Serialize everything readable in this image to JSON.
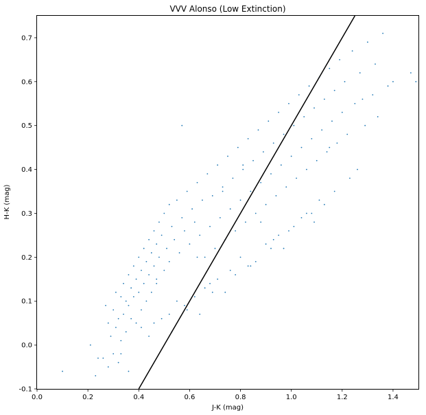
{
  "chart_data": {
    "type": "scatter",
    "title": "VVV Alonso (Low Extinction)",
    "xlabel": "J-K (mag)",
    "ylabel": "H-K (mag)",
    "xlim": [
      0.0,
      1.5
    ],
    "ylim": [
      -0.1,
      0.75
    ],
    "xticks": [
      "0.0",
      "0.2",
      "0.4",
      "0.6",
      "0.8",
      "1.0",
      "1.2",
      "1.4"
    ],
    "yticks": [
      "-0.1",
      "0.0",
      "0.1",
      "0.2",
      "0.3",
      "0.4",
      "0.5",
      "0.6",
      "0.7"
    ],
    "grid": false,
    "legend": "none",
    "series": [
      {
        "kind": "points",
        "color": "#1f77b4",
        "x": [
          0.1,
          0.21,
          0.23,
          0.24,
          0.26,
          0.27,
          0.28,
          0.28,
          0.29,
          0.3,
          0.3,
          0.31,
          0.31,
          0.32,
          0.32,
          0.33,
          0.33,
          0.34,
          0.34,
          0.35,
          0.35,
          0.36,
          0.36,
          0.37,
          0.37,
          0.38,
          0.38,
          0.39,
          0.39,
          0.4,
          0.4,
          0.41,
          0.41,
          0.42,
          0.42,
          0.43,
          0.43,
          0.44,
          0.44,
          0.45,
          0.45,
          0.46,
          0.46,
          0.47,
          0.47,
          0.48,
          0.48,
          0.49,
          0.5,
          0.5,
          0.51,
          0.52,
          0.52,
          0.53,
          0.54,
          0.55,
          0.56,
          0.57,
          0.58,
          0.59,
          0.6,
          0.61,
          0.62,
          0.63,
          0.64,
          0.65,
          0.66,
          0.67,
          0.68,
          0.69,
          0.7,
          0.71,
          0.72,
          0.73,
          0.74,
          0.75,
          0.76,
          0.77,
          0.78,
          0.79,
          0.8,
          0.81,
          0.82,
          0.83,
          0.84,
          0.85,
          0.86,
          0.87,
          0.88,
          0.89,
          0.9,
          0.91,
          0.92,
          0.93,
          0.94,
          0.95,
          0.96,
          0.97,
          0.98,
          0.99,
          1.0,
          1.01,
          1.02,
          1.03,
          1.04,
          1.05,
          1.06,
          1.07,
          1.08,
          1.09,
          1.1,
          1.11,
          1.12,
          1.13,
          1.14,
          1.15,
          1.16,
          1.17,
          1.18,
          1.19,
          1.2,
          1.21,
          1.22,
          1.24,
          1.25,
          1.27,
          1.29,
          1.3,
          1.32,
          1.33,
          1.34,
          1.36,
          1.38,
          1.4,
          1.47,
          1.49,
          0.57,
          0.81,
          0.73,
          0.95,
          1.15,
          1.28,
          0.47,
          0.63,
          0.88,
          0.52,
          0.69,
          0.84,
          1.06,
          0.36,
          0.44,
          0.59,
          0.66,
          0.78,
          0.92,
          1.01,
          1.11,
          0.41,
          0.55,
          0.71,
          0.86,
          0.99,
          1.08,
          1.23,
          0.49,
          0.62,
          0.76,
          0.9,
          1.04,
          1.17,
          0.33,
          0.46,
          0.58,
          0.68,
          0.8,
          0.93,
          1.13,
          0.53,
          0.64,
          0.74,
          0.83,
          0.97,
          1.09,
          1.26
        ],
        "y": [
          -0.06,
          0.0,
          -0.07,
          -0.03,
          -0.03,
          0.09,
          0.05,
          -0.05,
          0.02,
          0.08,
          -0.02,
          0.12,
          0.04,
          0.06,
          -0.04,
          0.11,
          0.01,
          0.14,
          0.07,
          0.1,
          0.03,
          0.16,
          0.09,
          0.13,
          0.06,
          0.18,
          0.11,
          0.15,
          0.05,
          0.2,
          0.12,
          0.17,
          0.08,
          0.22,
          0.14,
          0.19,
          0.1,
          0.24,
          0.16,
          0.21,
          0.12,
          0.26,
          0.18,
          0.23,
          0.14,
          0.28,
          0.2,
          0.25,
          0.3,
          0.17,
          0.22,
          0.32,
          0.19,
          0.27,
          0.24,
          0.33,
          0.21,
          0.29,
          0.26,
          0.35,
          0.23,
          0.31,
          0.28,
          0.37,
          0.25,
          0.33,
          0.2,
          0.39,
          0.27,
          0.34,
          0.22,
          0.41,
          0.29,
          0.36,
          0.24,
          0.43,
          0.31,
          0.38,
          0.26,
          0.45,
          0.33,
          0.4,
          0.28,
          0.47,
          0.35,
          0.42,
          0.3,
          0.49,
          0.37,
          0.44,
          0.32,
          0.51,
          0.39,
          0.46,
          0.34,
          0.53,
          0.41,
          0.48,
          0.36,
          0.55,
          0.43,
          0.5,
          0.38,
          0.57,
          0.45,
          0.52,
          0.4,
          0.59,
          0.47,
          0.54,
          0.42,
          0.61,
          0.49,
          0.56,
          0.44,
          0.63,
          0.51,
          0.58,
          0.46,
          0.65,
          0.53,
          0.6,
          0.48,
          0.67,
          0.55,
          0.62,
          0.5,
          0.69,
          0.57,
          0.64,
          0.52,
          0.71,
          0.59,
          0.6,
          0.62,
          0.6,
          0.5,
          0.41,
          0.35,
          0.25,
          0.45,
          0.56,
          0.15,
          0.2,
          0.28,
          0.07,
          0.12,
          0.18,
          0.3,
          -0.06,
          0.02,
          0.08,
          0.13,
          0.16,
          0.22,
          0.27,
          0.33,
          0.04,
          0.1,
          0.15,
          0.19,
          0.26,
          0.3,
          0.38,
          0.06,
          0.11,
          0.17,
          0.23,
          0.29,
          0.35,
          -0.02,
          0.05,
          0.09,
          0.14,
          0.2,
          0.24,
          0.32,
          0.03,
          0.07,
          0.12,
          0.18,
          0.22,
          0.28,
          0.4
        ]
      },
      {
        "kind": "line",
        "color": "#000000",
        "x": [
          0.4,
          1.25
        ],
        "y": [
          -0.1,
          0.75
        ]
      }
    ]
  }
}
